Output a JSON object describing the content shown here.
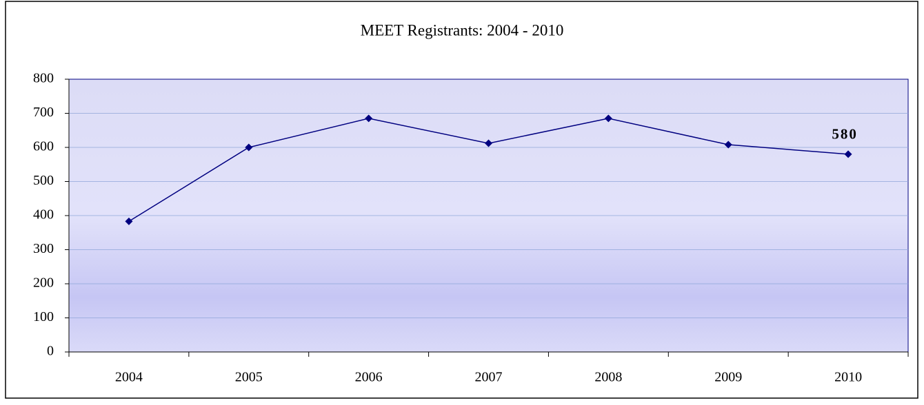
{
  "chart_data": {
    "type": "line",
    "title": "MEET Registrants: 2004 - 2010",
    "categories": [
      "2004",
      "2005",
      "2006",
      "2007",
      "2008",
      "2009",
      "2010"
    ],
    "series": [
      {
        "name": "Registrants",
        "color": "#000080",
        "values": [
          383,
          600,
          685,
          612,
          685,
          608,
          580
        ],
        "value_labels": [
          null,
          null,
          null,
          null,
          null,
          null,
          "580"
        ]
      }
    ],
    "ylim": [
      0,
      800
    ],
    "yticks": [
      0,
      100,
      200,
      300,
      400,
      500,
      600,
      700,
      800
    ],
    "grid": true
  }
}
